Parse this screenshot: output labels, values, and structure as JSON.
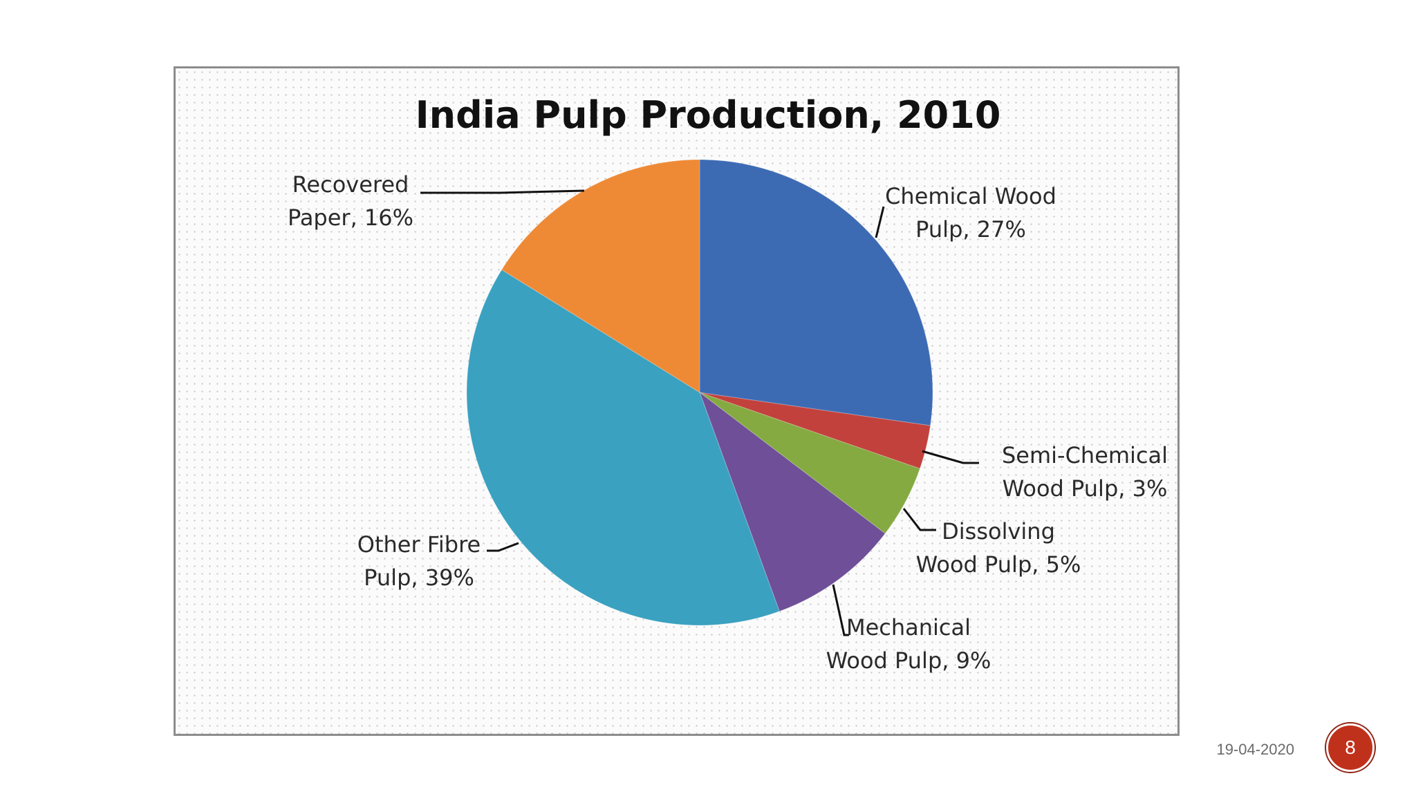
{
  "chart_data": {
    "type": "pie",
    "title": "India Pulp Production, 2010",
    "slices": [
      {
        "name": "Chemical Wood Pulp",
        "value": 27,
        "label": [
          "Chemical Wood",
          "Pulp, 27%"
        ],
        "color": "#3d6bb3"
      },
      {
        "name": "Semi-Chemical Wood Pulp",
        "value": 3,
        "label": [
          "Semi-Chemical",
          "Wood Pulp, 3%"
        ],
        "color": "#c2413c"
      },
      {
        "name": "Dissolving Wood Pulp",
        "value": 5,
        "label": [
          "Dissolving",
          "Wood Pulp, 5%"
        ],
        "color": "#85aa41"
      },
      {
        "name": "Mechanical Wood Pulp",
        "value": 9,
        "label": [
          "Mechanical",
          "Wood Pulp, 9%"
        ],
        "color": "#6e4f98"
      },
      {
        "name": "Other Fibre Pulp",
        "value": 39,
        "label": [
          "Other Fibre",
          "Pulp, 39%"
        ],
        "color": "#3aa1c0"
      },
      {
        "name": "Recovered Paper",
        "value": 16,
        "label": [
          "Recovered",
          "Paper, 16%"
        ],
        "color": "#ee8a36"
      }
    ]
  },
  "footer": {
    "date": "19-04-2020",
    "page_number": "8"
  }
}
